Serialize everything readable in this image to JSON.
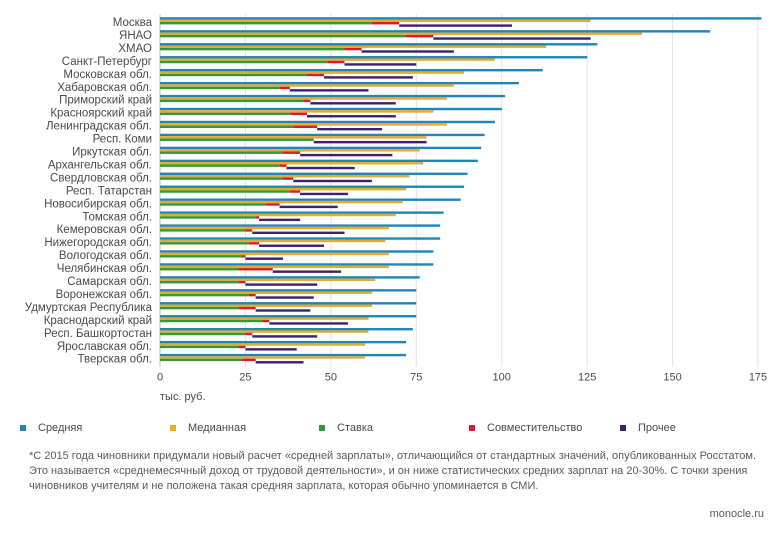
{
  "chart_data": {
    "type": "bar",
    "orientation": "horizontal",
    "xlim": [
      0,
      175
    ],
    "xticks": [
      0,
      25,
      50,
      75,
      100,
      125,
      150,
      175
    ],
    "unit_label": "тыс. руб.",
    "categories": [
      "Москва",
      "ЯНАО",
      "ХМАО",
      "Санкт-Петербург",
      "Московская обл.",
      "Хабаровская обл.",
      "Приморский край",
      "Красноярский край",
      "Ленинградская обл.",
      "Респ. Коми",
      "Иркутская обл.",
      "Архангельская обл.",
      "Свердловская обл.",
      "Респ. Татарстан",
      "Новосибирская обл.",
      "Томская обл.",
      "Кемеровская обл.",
      "Нижегородская обл.",
      "Вологодская обл.",
      "Челябинская обл.",
      "Самарская обл.",
      "Воронежская обл.",
      "Удмуртская Республика",
      "Краснодарский край",
      "Респ. Башкортостан",
      "Ярославская обл.",
      "Тверская обл."
    ],
    "series": [
      {
        "name": "Средняя",
        "color": "#1f86b8",
        "values": [
          176,
          161,
          128,
          125,
          112,
          105,
          101,
          100,
          98,
          95,
          94,
          93,
          90,
          89,
          88,
          83,
          82,
          82,
          80,
          80,
          76,
          75,
          75,
          75,
          74,
          72,
          72
        ]
      },
      {
        "name": "Медианная",
        "color": "#e8a92e",
        "values": [
          126,
          141,
          113,
          98,
          89,
          86,
          84,
          80,
          84,
          78,
          76,
          77,
          73,
          72,
          71,
          69,
          67,
          66,
          67,
          67,
          63,
          62,
          62,
          61,
          61,
          60,
          60
        ]
      },
      {
        "name": "Ставка",
        "color": "#2e9a3c",
        "values": [
          62,
          72,
          54,
          49,
          43,
          35,
          42,
          38,
          39,
          45,
          36,
          35,
          36,
          38,
          31,
          28,
          25,
          26,
          24,
          23,
          23,
          26,
          23,
          30,
          25,
          23,
          24
        ]
      },
      {
        "name": "Совместительство",
        "color": "#d81b31",
        "values": [
          8,
          8,
          5,
          5,
          5,
          3,
          2,
          5,
          7,
          0,
          5,
          2,
          3,
          3,
          4,
          1,
          2,
          3,
          1,
          10,
          2,
          2,
          5,
          2,
          2,
          2,
          4
        ]
      },
      {
        "name": "Прочее",
        "color": "#3f1f6e",
        "values": [
          33,
          46,
          27,
          21,
          26,
          23,
          25,
          26,
          19,
          33,
          27,
          20,
          23,
          14,
          17,
          12,
          27,
          19,
          11,
          20,
          21,
          17,
          16,
          23,
          19,
          15,
          14
        ]
      }
    ],
    "legend_position": "bottom"
  },
  "legend": [
    "Средняя",
    "Медианная",
    "Ставка",
    "Совместительство",
    "Прочее"
  ],
  "footnote": "*С 2015 года чиновники придумали новый расчет «средней зарплаты», отличающийся от стандартных значений, опубликованных Росстатом. Это называется «среднемесячный доход от трудовой деятельности», и он ниже статистических средних зарплат на 20-30%. С точки зрения чиновников учителям и не положена такая средняя зарплата, которая обычно упоминается в СМИ.",
  "source": "monocle.ru"
}
